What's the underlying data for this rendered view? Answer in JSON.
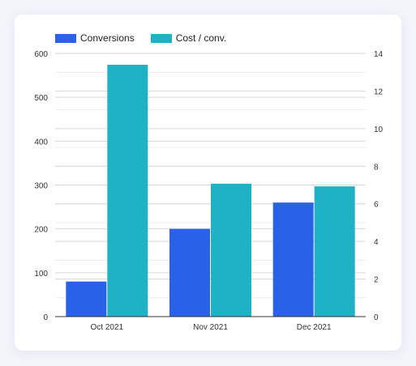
{
  "chart_data": {
    "type": "bar",
    "categories": [
      "Oct 2021",
      "Nov 2021",
      "Dec 2021"
    ],
    "series": [
      {
        "name": "Conversions",
        "axis": "left",
        "color": "#2962e8",
        "values": [
          80,
          200,
          260
        ]
      },
      {
        "name": "Cost / conv.",
        "axis": "right",
        "color": "#1fb2c6",
        "values": [
          13.4,
          7.07,
          6.93
        ]
      }
    ],
    "y_left": {
      "ticks": [
        "0",
        "100",
        "200",
        "300",
        "400",
        "500",
        "600"
      ],
      "range": [
        0,
        600
      ]
    },
    "y_right": {
      "ticks": [
        "0",
        "2",
        "4",
        "6",
        "8",
        "10",
        "12",
        "14"
      ],
      "range": [
        0,
        14
      ]
    },
    "grid": true,
    "legend_position": "top-left",
    "xlabel": "",
    "ylabel": ""
  }
}
